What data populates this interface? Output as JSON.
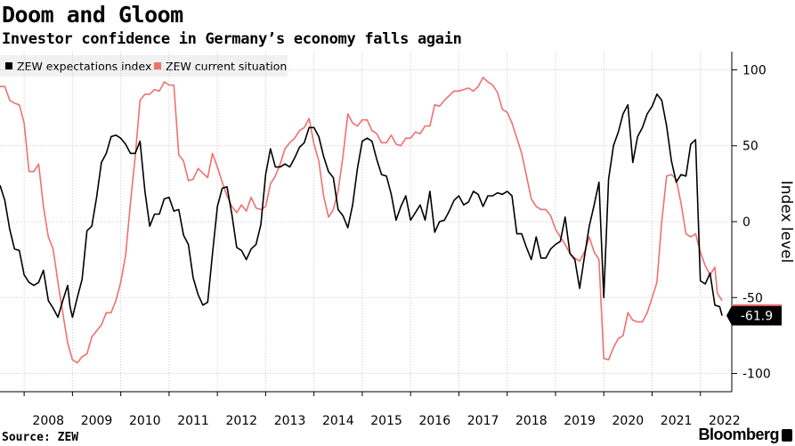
{
  "title": "Doom and Gloom",
  "subtitle": "Investor confidence in Germany’s economy falls again",
  "source": "Source: ZEW",
  "brand": "Bloomberg",
  "chart_data": {
    "type": "line",
    "ylabel": "Index level",
    "ylim": [
      -112,
      112
    ],
    "y_ticks": [
      100,
      50,
      0,
      -50,
      -100
    ],
    "y_tick_labels": [
      "100",
      "50",
      "0",
      "-50",
      "-100"
    ],
    "x_range": [
      2007.5,
      2022.65
    ],
    "x_ticks": [
      2008,
      2009,
      2010,
      2011,
      2012,
      2013,
      2014,
      2015,
      2016,
      2017,
      2018,
      2019,
      2020,
      2021,
      2022
    ],
    "x_tick_labels": [
      "2008",
      "2009",
      "2010",
      "2011",
      "2012",
      "2013",
      "2014",
      "2015",
      "2016",
      "2017",
      "2018",
      "2019",
      "2020",
      "2021",
      "2022"
    ],
    "grid": true,
    "legend_position": "top-left",
    "last_value_label": "-61.9",
    "series": [
      {
        "name": "ZEW expectations index",
        "color": "#000000",
        "points": [
          [
            2007.5,
            24
          ],
          [
            2007.6,
            14
          ],
          [
            2007.7,
            -5
          ],
          [
            2007.8,
            -18
          ],
          [
            2007.9,
            -19
          ],
          [
            2008.0,
            -35
          ],
          [
            2008.1,
            -40
          ],
          [
            2008.2,
            -42
          ],
          [
            2008.3,
            -40
          ],
          [
            2008.4,
            -32
          ],
          [
            2008.5,
            -52
          ],
          [
            2008.6,
            -57
          ],
          [
            2008.7,
            -63
          ],
          [
            2008.8,
            -52
          ],
          [
            2008.9,
            -42
          ],
          [
            2008.95,
            -56
          ],
          [
            2009.0,
            -63
          ],
          [
            2009.1,
            -50
          ],
          [
            2009.2,
            -38
          ],
          [
            2009.3,
            -6
          ],
          [
            2009.4,
            -3
          ],
          [
            2009.5,
            16
          ],
          [
            2009.6,
            39
          ],
          [
            2009.7,
            45
          ],
          [
            2009.8,
            56
          ],
          [
            2009.9,
            57
          ],
          [
            2010.0,
            55
          ],
          [
            2010.1,
            51
          ],
          [
            2010.2,
            45
          ],
          [
            2010.3,
            45
          ],
          [
            2010.4,
            53
          ],
          [
            2010.5,
            20
          ],
          [
            2010.6,
            -3
          ],
          [
            2010.7,
            5
          ],
          [
            2010.8,
            5
          ],
          [
            2010.9,
            15
          ],
          [
            2011.0,
            16
          ],
          [
            2011.1,
            7
          ],
          [
            2011.2,
            8
          ],
          [
            2011.3,
            -9
          ],
          [
            2011.4,
            -15
          ],
          [
            2011.5,
            -37
          ],
          [
            2011.6,
            -48
          ],
          [
            2011.7,
            -55
          ],
          [
            2011.8,
            -53
          ],
          [
            2011.9,
            -21
          ],
          [
            2012.0,
            10
          ],
          [
            2012.1,
            22
          ],
          [
            2012.2,
            23
          ],
          [
            2012.3,
            5
          ],
          [
            2012.4,
            -17
          ],
          [
            2012.5,
            -19
          ],
          [
            2012.6,
            -25
          ],
          [
            2012.7,
            -18
          ],
          [
            2012.8,
            -15
          ],
          [
            2012.9,
            -2
          ],
          [
            2013.0,
            31
          ],
          [
            2013.1,
            48
          ],
          [
            2013.2,
            36
          ],
          [
            2013.3,
            36
          ],
          [
            2013.4,
            38
          ],
          [
            2013.5,
            36
          ],
          [
            2013.6,
            42
          ],
          [
            2013.7,
            49
          ],
          [
            2013.8,
            52
          ],
          [
            2013.9,
            62
          ],
          [
            2014.0,
            62
          ],
          [
            2014.1,
            56
          ],
          [
            2014.2,
            43
          ],
          [
            2014.3,
            33
          ],
          [
            2014.4,
            29
          ],
          [
            2014.5,
            8
          ],
          [
            2014.6,
            4
          ],
          [
            2014.7,
            -4
          ],
          [
            2014.8,
            11
          ],
          [
            2014.9,
            35
          ],
          [
            2015.0,
            53
          ],
          [
            2015.1,
            55
          ],
          [
            2015.2,
            53
          ],
          [
            2015.3,
            41
          ],
          [
            2015.4,
            31
          ],
          [
            2015.5,
            30
          ],
          [
            2015.6,
            18
          ],
          [
            2015.7,
            1
          ],
          [
            2015.8,
            10
          ],
          [
            2015.9,
            17
          ],
          [
            2016.0,
            1
          ],
          [
            2016.1,
            6
          ],
          [
            2016.2,
            11
          ],
          [
            2016.3,
            1
          ],
          [
            2016.4,
            20
          ],
          [
            2016.5,
            -7
          ],
          [
            2016.6,
            0
          ],
          [
            2016.7,
            1
          ],
          [
            2016.8,
            7
          ],
          [
            2016.9,
            14
          ],
          [
            2017.0,
            17
          ],
          [
            2017.1,
            11
          ],
          [
            2017.2,
            13
          ],
          [
            2017.3,
            20
          ],
          [
            2017.4,
            18
          ],
          [
            2017.5,
            10
          ],
          [
            2017.6,
            17
          ],
          [
            2017.7,
            17
          ],
          [
            2017.8,
            19
          ],
          [
            2017.9,
            18
          ],
          [
            2018.0,
            20
          ],
          [
            2018.1,
            17
          ],
          [
            2018.2,
            -8
          ],
          [
            2018.3,
            -8
          ],
          [
            2018.4,
            -17
          ],
          [
            2018.5,
            -25
          ],
          [
            2018.6,
            -10
          ],
          [
            2018.7,
            -24
          ],
          [
            2018.8,
            -24
          ],
          [
            2018.9,
            -18
          ],
          [
            2019.0,
            -15
          ],
          [
            2019.1,
            -13
          ],
          [
            2019.2,
            3
          ],
          [
            2019.3,
            -21
          ],
          [
            2019.4,
            -25
          ],
          [
            2019.5,
            -44
          ],
          [
            2019.6,
            -23
          ],
          [
            2019.7,
            -3
          ],
          [
            2019.8,
            11
          ],
          [
            2019.9,
            26
          ],
          [
            2020.0,
            -50
          ],
          [
            2020.1,
            28
          ],
          [
            2020.2,
            50
          ],
          [
            2020.3,
            59
          ],
          [
            2020.4,
            71
          ],
          [
            2020.5,
            77
          ],
          [
            2020.6,
            39
          ],
          [
            2020.7,
            56
          ],
          [
            2020.8,
            62
          ],
          [
            2020.9,
            71
          ],
          [
            2021.0,
            76
          ],
          [
            2021.1,
            84
          ],
          [
            2021.2,
            80
          ],
          [
            2021.3,
            63
          ],
          [
            2021.4,
            40
          ],
          [
            2021.5,
            26
          ],
          [
            2021.6,
            31
          ],
          [
            2021.7,
            30
          ],
          [
            2021.8,
            51
          ],
          [
            2021.9,
            54
          ],
          [
            2022.0,
            -39
          ],
          [
            2022.1,
            -41
          ],
          [
            2022.2,
            -34
          ],
          [
            2022.3,
            -55
          ],
          [
            2022.4,
            -56
          ],
          [
            2022.45,
            -61.9
          ]
        ]
      },
      {
        "name": "ZEW current situation",
        "color": "#f07070",
        "points": [
          [
            2007.5,
            89
          ],
          [
            2007.6,
            89
          ],
          [
            2007.7,
            80
          ],
          [
            2007.8,
            78
          ],
          [
            2007.9,
            77
          ],
          [
            2008.0,
            65
          ],
          [
            2008.1,
            33
          ],
          [
            2008.2,
            33
          ],
          [
            2008.3,
            38
          ],
          [
            2008.4,
            10
          ],
          [
            2008.5,
            -10
          ],
          [
            2008.6,
            -18
          ],
          [
            2008.7,
            -40
          ],
          [
            2008.8,
            -60
          ],
          [
            2008.9,
            -80
          ],
          [
            2009.0,
            -91
          ],
          [
            2009.1,
            -93
          ],
          [
            2009.2,
            -89
          ],
          [
            2009.3,
            -87
          ],
          [
            2009.4,
            -76
          ],
          [
            2009.5,
            -72
          ],
          [
            2009.6,
            -68
          ],
          [
            2009.7,
            -60
          ],
          [
            2009.8,
            -60
          ],
          [
            2009.9,
            -52
          ],
          [
            2010.0,
            -40
          ],
          [
            2010.1,
            -22
          ],
          [
            2010.2,
            12
          ],
          [
            2010.3,
            43
          ],
          [
            2010.4,
            80
          ],
          [
            2010.5,
            84
          ],
          [
            2010.6,
            84
          ],
          [
            2010.7,
            87
          ],
          [
            2010.8,
            86
          ],
          [
            2010.9,
            92
          ],
          [
            2011.0,
            90
          ],
          [
            2011.1,
            90
          ],
          [
            2011.2,
            44
          ],
          [
            2011.3,
            40
          ],
          [
            2011.4,
            27
          ],
          [
            2011.5,
            28
          ],
          [
            2011.6,
            35
          ],
          [
            2011.7,
            32
          ],
          [
            2011.8,
            29
          ],
          [
            2011.9,
            45
          ],
          [
            2012.0,
            36
          ],
          [
            2012.1,
            26
          ],
          [
            2012.2,
            17
          ],
          [
            2012.3,
            10
          ],
          [
            2012.4,
            6
          ],
          [
            2012.5,
            11
          ],
          [
            2012.6,
            7
          ],
          [
            2012.7,
            16
          ],
          [
            2012.8,
            9
          ],
          [
            2012.9,
            8
          ],
          [
            2013.0,
            10
          ],
          [
            2013.1,
            25
          ],
          [
            2013.2,
            30
          ],
          [
            2013.3,
            38
          ],
          [
            2013.4,
            48
          ],
          [
            2013.5,
            52
          ],
          [
            2013.6,
            55
          ],
          [
            2013.7,
            60
          ],
          [
            2013.8,
            62
          ],
          [
            2013.9,
            68
          ],
          [
            2014.0,
            51
          ],
          [
            2014.1,
            40
          ],
          [
            2014.2,
            17
          ],
          [
            2014.3,
            3
          ],
          [
            2014.4,
            8
          ],
          [
            2014.5,
            20
          ],
          [
            2014.6,
            43
          ],
          [
            2014.7,
            71
          ],
          [
            2014.8,
            65
          ],
          [
            2014.9,
            63
          ],
          [
            2015.0,
            67
          ],
          [
            2015.1,
            67
          ],
          [
            2015.2,
            60
          ],
          [
            2015.3,
            58
          ],
          [
            2015.4,
            52
          ],
          [
            2015.5,
            52
          ],
          [
            2015.6,
            57
          ],
          [
            2015.7,
            51
          ],
          [
            2015.8,
            50
          ],
          [
            2015.9,
            55
          ],
          [
            2016.0,
            55
          ],
          [
            2016.1,
            59
          ],
          [
            2016.2,
            58
          ],
          [
            2016.3,
            63
          ],
          [
            2016.4,
            63
          ],
          [
            2016.5,
            77
          ],
          [
            2016.6,
            76
          ],
          [
            2016.7,
            80
          ],
          [
            2016.8,
            83
          ],
          [
            2016.9,
            86
          ],
          [
            2017.0,
            86
          ],
          [
            2017.1,
            87
          ],
          [
            2017.2,
            88
          ],
          [
            2017.3,
            86
          ],
          [
            2017.4,
            89
          ],
          [
            2017.5,
            95
          ],
          [
            2017.6,
            92
          ],
          [
            2017.7,
            90
          ],
          [
            2017.8,
            85
          ],
          [
            2017.9,
            74
          ],
          [
            2018.0,
            72
          ],
          [
            2018.1,
            65
          ],
          [
            2018.2,
            55
          ],
          [
            2018.3,
            45
          ],
          [
            2018.4,
            30
          ],
          [
            2018.5,
            15
          ],
          [
            2018.6,
            10
          ],
          [
            2018.7,
            8
          ],
          [
            2018.8,
            8
          ],
          [
            2018.9,
            4
          ],
          [
            2019.0,
            -5
          ],
          [
            2019.1,
            -10
          ],
          [
            2019.2,
            -15
          ],
          [
            2019.3,
            -21
          ],
          [
            2019.4,
            -24
          ],
          [
            2019.5,
            -26
          ],
          [
            2019.6,
            -20
          ],
          [
            2019.7,
            -10
          ],
          [
            2019.8,
            -20
          ],
          [
            2019.9,
            -25
          ],
          [
            2020.0,
            -90
          ],
          [
            2020.1,
            -91
          ],
          [
            2020.2,
            -83
          ],
          [
            2020.3,
            -77
          ],
          [
            2020.4,
            -75
          ],
          [
            2020.5,
            -60
          ],
          [
            2020.6,
            -65
          ],
          [
            2020.7,
            -66
          ],
          [
            2020.8,
            -66
          ],
          [
            2020.9,
            -60
          ],
          [
            2021.0,
            -50
          ],
          [
            2021.1,
            -40
          ],
          [
            2021.2,
            0
          ],
          [
            2021.3,
            30
          ],
          [
            2021.4,
            31
          ],
          [
            2021.5,
            28
          ],
          [
            2021.6,
            12
          ],
          [
            2021.7,
            -8
          ],
          [
            2021.8,
            -10
          ],
          [
            2021.9,
            -8
          ],
          [
            2022.0,
            -20
          ],
          [
            2022.1,
            -29
          ],
          [
            2022.2,
            -35
          ],
          [
            2022.3,
            -30
          ],
          [
            2022.35,
            -47
          ],
          [
            2022.45,
            -52
          ]
        ]
      }
    ]
  }
}
